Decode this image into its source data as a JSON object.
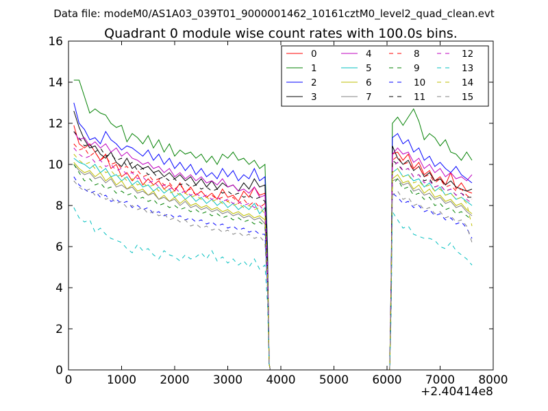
{
  "figure": {
    "supertitle": "Data file: modeM0/AS1A03_039T01_9000001462_10161cztM0_level2_quad_clean.evt"
  },
  "chart_data": {
    "type": "line",
    "title": "Quadrant 0 module wise count rates with 100.0s bins.",
    "xlabel": "",
    "ylabel": "",
    "x_offset_label": "+2.40414e8",
    "xlim": [
      0,
      8000
    ],
    "ylim": [
      0,
      16
    ],
    "xticks": [
      0,
      1000,
      2000,
      3000,
      4000,
      5000,
      6000,
      7000,
      8000
    ],
    "yticks": [
      0,
      2,
      4,
      6,
      8,
      10,
      12,
      14,
      16
    ],
    "grid": false,
    "legend_placement": "top-right",
    "legend_columns": 4,
    "x": [
      100,
      200,
      300,
      400,
      500,
      600,
      700,
      800,
      900,
      1000,
      1100,
      1200,
      1300,
      1400,
      1500,
      1600,
      1700,
      1800,
      1900,
      2000,
      2100,
      2200,
      2300,
      2400,
      2500,
      2600,
      2700,
      2800,
      2900,
      3000,
      3100,
      3200,
      3300,
      3400,
      3500,
      3600,
      3700,
      3750,
      3780,
      3800,
      4000,
      4500,
      5000,
      5500,
      6000,
      6050,
      6080,
      6100,
      6200,
      6300,
      6400,
      6500,
      6600,
      6700,
      6800,
      6900,
      7000,
      7100,
      7200,
      7300,
      7400,
      7500,
      7600
    ],
    "series": [
      {
        "name": "0",
        "color": "#ff0000",
        "style": "solid",
        "values": [
          11.9,
          11.0,
          10.8,
          11.0,
          10.6,
          10.2,
          10.5,
          9.8,
          10.0,
          9.4,
          9.6,
          9.2,
          9.5,
          9.0,
          9.3,
          9.0,
          9.2,
          8.8,
          9.0,
          8.7,
          9.1,
          8.6,
          8.9,
          8.5,
          8.7,
          8.4,
          8.6,
          8.3,
          8.8,
          8.4,
          8.5,
          8.2,
          8.7,
          8.4,
          8.9,
          8.5,
          8.6,
          5.0,
          0.3,
          0.0,
          0.0,
          0.0,
          0.0,
          0.0,
          0.0,
          0.0,
          4.5,
          10.5,
          10.6,
          10.2,
          10.5,
          9.8,
          10.1,
          9.5,
          9.7,
          9.2,
          9.4,
          9.0,
          9.6,
          8.8,
          9.1,
          8.7,
          8.6
        ]
      },
      {
        "name": "1",
        "color": "#008000",
        "style": "solid",
        "values": [
          14.1,
          14.1,
          13.3,
          12.5,
          12.7,
          12.5,
          12.4,
          12.0,
          11.8,
          11.9,
          11.1,
          11.5,
          11.3,
          11.0,
          11.4,
          10.8,
          11.2,
          10.6,
          11.0,
          10.4,
          10.7,
          10.5,
          10.6,
          10.3,
          10.5,
          10.1,
          10.4,
          10.0,
          10.5,
          10.3,
          10.6,
          10.2,
          10.3,
          10.0,
          10.2,
          9.8,
          10.0,
          6.0,
          0.3,
          0.0,
          0.0,
          0.0,
          0.0,
          0.0,
          0.0,
          0.0,
          5.0,
          12.0,
          12.3,
          11.9,
          12.3,
          12.7,
          12.1,
          11.2,
          11.5,
          11.3,
          10.9,
          11.2,
          10.6,
          10.5,
          10.2,
          10.6,
          10.2
        ]
      },
      {
        "name": "2",
        "color": "#0000ff",
        "style": "solid",
        "values": [
          13.0,
          12.0,
          11.7,
          11.2,
          11.3,
          11.0,
          11.6,
          11.2,
          11.0,
          10.7,
          10.9,
          10.8,
          10.6,
          10.4,
          10.7,
          10.2,
          10.5,
          10.0,
          10.3,
          9.8,
          10.1,
          9.7,
          10.0,
          9.5,
          9.8,
          9.4,
          9.6,
          9.3,
          9.8,
          9.4,
          9.7,
          9.2,
          9.5,
          9.3,
          9.8,
          9.2,
          9.4,
          5.5,
          0.3,
          0.0,
          0.0,
          0.0,
          0.0,
          0.0,
          0.0,
          0.0,
          4.8,
          11.3,
          11.5,
          11.0,
          11.2,
          10.6,
          10.8,
          10.2,
          10.4,
          9.9,
          10.1,
          9.8,
          9.6,
          9.9,
          9.5,
          9.3,
          9.1
        ]
      },
      {
        "name": "3",
        "color": "#000000",
        "style": "solid",
        "values": [
          12.6,
          11.8,
          11.2,
          10.8,
          10.9,
          10.5,
          10.3,
          10.6,
          10.1,
          9.9,
          10.3,
          9.8,
          10.0,
          9.8,
          9.9,
          9.6,
          9.7,
          9.4,
          9.6,
          9.3,
          9.5,
          9.2,
          9.4,
          9.0,
          9.3,
          8.9,
          9.2,
          8.8,
          9.1,
          8.9,
          9.0,
          8.7,
          9.1,
          8.8,
          9.3,
          8.9,
          9.0,
          5.3,
          0.3,
          0.0,
          0.0,
          0.0,
          0.0,
          0.0,
          0.0,
          0.0,
          4.6,
          10.9,
          10.3,
          10.0,
          10.2,
          9.7,
          9.9,
          9.4,
          9.6,
          9.2,
          9.3,
          9.0,
          9.2,
          8.9,
          8.8,
          8.7,
          8.8
        ]
      },
      {
        "name": "4",
        "color": "#bf00bf",
        "style": "solid",
        "values": [
          11.6,
          11.2,
          11.3,
          10.9,
          11.1,
          10.8,
          11.0,
          10.6,
          10.8,
          10.4,
          10.6,
          10.3,
          10.2,
          10.0,
          10.1,
          9.8,
          9.9,
          9.6,
          9.8,
          9.4,
          9.6,
          9.3,
          9.5,
          9.2,
          9.4,
          9.1,
          9.2,
          9.0,
          9.3,
          8.9,
          9.0,
          8.7,
          8.8,
          8.6,
          8.9,
          8.4,
          8.5,
          5.0,
          0.3,
          0.0,
          0.0,
          0.0,
          0.0,
          0.0,
          0.0,
          0.0,
          4.6,
          10.5,
          10.8,
          10.5,
          10.6,
          10.1,
          10.3,
          9.8,
          10.0,
          9.6,
          9.8,
          9.4,
          9.6,
          9.3,
          9.4,
          9.2,
          9.5
        ]
      },
      {
        "name": "5",
        "color": "#00bfbf",
        "style": "solid",
        "values": [
          10.3,
          10.1,
          10.0,
          9.8,
          10.0,
          9.6,
          9.8,
          9.4,
          9.5,
          9.2,
          9.4,
          9.0,
          9.2,
          8.9,
          9.0,
          8.7,
          8.9,
          8.6,
          8.8,
          8.4,
          8.6,
          8.3,
          8.5,
          8.2,
          8.4,
          8.1,
          8.3,
          8.0,
          8.2,
          7.9,
          8.1,
          7.8,
          8.0,
          7.8,
          8.1,
          7.6,
          7.9,
          4.7,
          0.3,
          0.0,
          0.0,
          0.0,
          0.0,
          0.0,
          0.0,
          0.0,
          4.3,
          9.6,
          9.8,
          9.4,
          9.5,
          9.2,
          9.3,
          8.9,
          9.1,
          8.7,
          8.9,
          8.5,
          8.6,
          8.3,
          8.4,
          8.2,
          8.0
        ]
      },
      {
        "name": "6",
        "color": "#bfbf00",
        "style": "solid",
        "values": [
          10.1,
          9.8,
          9.6,
          9.7,
          9.4,
          9.6,
          9.2,
          9.4,
          9.0,
          9.2,
          8.8,
          9.0,
          8.7,
          8.8,
          8.5,
          8.7,
          8.3,
          8.5,
          8.2,
          8.4,
          8.1,
          8.3,
          8.0,
          8.1,
          7.9,
          8.0,
          7.8,
          7.9,
          7.7,
          7.8,
          7.6,
          7.7,
          7.5,
          7.6,
          7.4,
          7.5,
          7.3,
          4.4,
          0.3,
          0.0,
          0.0,
          0.0,
          0.0,
          0.0,
          0.0,
          0.0,
          4.1,
          9.3,
          9.5,
          9.1,
          9.2,
          8.8,
          9.0,
          8.6,
          8.8,
          8.4,
          8.5,
          8.2,
          8.3,
          8.0,
          8.1,
          7.8,
          7.6
        ]
      },
      {
        "name": "7",
        "color": "#808080",
        "style": "solid",
        "values": [
          10.0,
          9.7,
          9.5,
          9.6,
          9.3,
          9.4,
          9.1,
          9.3,
          8.9,
          9.0,
          8.8,
          8.9,
          8.6,
          8.7,
          8.5,
          8.6,
          8.3,
          8.4,
          8.2,
          8.3,
          8.0,
          8.2,
          7.9,
          8.0,
          7.8,
          7.9,
          7.7,
          7.8,
          7.6,
          7.7,
          7.5,
          7.6,
          7.4,
          7.5,
          7.3,
          7.4,
          7.1,
          4.3,
          0.3,
          0.0,
          0.0,
          0.0,
          0.0,
          0.0,
          0.0,
          0.0,
          4.0,
          9.2,
          9.3,
          9.0,
          9.1,
          8.7,
          8.8,
          8.5,
          8.6,
          8.3,
          8.4,
          8.1,
          8.2,
          7.9,
          8.0,
          7.7,
          7.5
        ]
      },
      {
        "name": "8",
        "color": "#ff0000",
        "style": "dashed",
        "values": [
          11.0,
          10.7,
          10.8,
          10.4,
          10.6,
          10.2,
          10.4,
          10.0,
          10.1,
          9.8,
          9.9,
          9.6,
          9.7,
          9.4,
          9.5,
          9.2,
          9.3,
          9.0,
          9.1,
          8.8,
          9.0,
          8.7,
          8.8,
          8.5,
          8.7,
          8.4,
          8.5,
          8.3,
          8.4,
          8.2,
          8.4,
          8.1,
          8.3,
          8.0,
          8.2,
          7.9,
          8.1,
          4.8,
          0.3,
          0.0,
          0.0,
          0.0,
          0.0,
          0.0,
          0.0,
          0.0,
          4.4,
          10.2,
          10.4,
          10.0,
          10.1,
          9.7,
          9.9,
          9.4,
          9.5,
          9.1,
          9.3,
          8.9,
          9.0,
          8.7,
          8.8,
          8.5,
          8.3
        ]
      },
      {
        "name": "9",
        "color": "#008000",
        "style": "dashed",
        "values": [
          10.0,
          9.6,
          9.2,
          9.3,
          9.0,
          9.1,
          8.8,
          8.9,
          8.6,
          8.7,
          8.5,
          8.6,
          8.3,
          8.4,
          8.2,
          8.3,
          8.0,
          8.1,
          7.9,
          8.0,
          7.8,
          7.9,
          7.7,
          7.8,
          7.6,
          7.7,
          7.5,
          7.6,
          7.4,
          7.5,
          7.3,
          7.4,
          7.2,
          7.3,
          7.1,
          7.2,
          7.0,
          4.2,
          0.3,
          0.0,
          0.0,
          0.0,
          0.0,
          0.0,
          0.0,
          0.0,
          3.9,
          9.0,
          9.3,
          8.8,
          8.9,
          8.5,
          8.6,
          8.3,
          8.4,
          8.0,
          8.1,
          7.8,
          7.9,
          7.6,
          7.7,
          7.5,
          7.3
        ]
      },
      {
        "name": "10",
        "color": "#0000ff",
        "style": "dashed",
        "values": [
          9.4,
          9.0,
          8.8,
          8.6,
          8.7,
          8.4,
          8.5,
          8.2,
          8.3,
          8.1,
          8.2,
          7.9,
          8.0,
          7.8,
          7.9,
          7.6,
          7.7,
          7.5,
          7.6,
          7.4,
          7.5,
          7.3,
          7.4,
          7.2,
          7.3,
          7.1,
          7.2,
          7.0,
          7.1,
          6.9,
          7.0,
          6.8,
          6.9,
          6.7,
          6.8,
          6.6,
          6.6,
          4.0,
          0.3,
          0.0,
          0.0,
          0.0,
          0.0,
          0.0,
          0.0,
          0.0,
          3.7,
          8.6,
          8.4,
          8.1,
          8.2,
          7.9,
          8.0,
          7.7,
          7.8,
          7.5,
          7.6,
          7.3,
          7.4,
          7.1,
          7.2,
          6.9,
          6.4
        ]
      },
      {
        "name": "11",
        "color": "#000000",
        "style": "dashed",
        "values": [
          11.6,
          11.3,
          10.9,
          11.0,
          10.6,
          10.8,
          10.4,
          10.5,
          10.2,
          10.3,
          9.9,
          10.1,
          9.7,
          9.8,
          9.5,
          9.6,
          9.3,
          9.4,
          9.2,
          9.3,
          9.0,
          9.1,
          8.9,
          9.0,
          8.8,
          8.9,
          8.7,
          8.8,
          8.6,
          8.7,
          8.5,
          8.6,
          8.4,
          8.5,
          8.3,
          8.4,
          8.2,
          4.9,
          0.3,
          0.0,
          0.0,
          0.0,
          0.0,
          0.0,
          0.0,
          0.0,
          4.5,
          10.2,
          10.0,
          9.7,
          9.8,
          9.4,
          9.5,
          9.2,
          9.3,
          8.9,
          9.0,
          8.7,
          8.8,
          8.5,
          8.6,
          8.4,
          8.4
        ]
      },
      {
        "name": "12",
        "color": "#bf00bf",
        "style": "dashed",
        "values": [
          10.8,
          10.5,
          10.3,
          10.4,
          10.1,
          10.2,
          9.9,
          10.0,
          9.7,
          9.8,
          9.5,
          9.6,
          9.3,
          9.4,
          9.1,
          9.2,
          8.9,
          9.0,
          8.8,
          8.9,
          8.6,
          8.7,
          8.5,
          8.6,
          8.4,
          8.5,
          8.3,
          8.4,
          8.2,
          8.3,
          8.1,
          8.2,
          8.0,
          8.1,
          7.9,
          8.0,
          7.7,
          4.6,
          0.3,
          0.0,
          0.0,
          0.0,
          0.0,
          0.0,
          0.0,
          0.0,
          4.3,
          9.9,
          10.1,
          9.7,
          9.8,
          9.4,
          9.5,
          9.1,
          9.2,
          8.9,
          9.0,
          8.7,
          8.8,
          8.5,
          8.6,
          8.3,
          8.1
        ]
      },
      {
        "name": "13",
        "color": "#00bfbf",
        "style": "dashed",
        "values": [
          7.9,
          7.4,
          7.2,
          7.3,
          6.7,
          6.9,
          6.6,
          6.4,
          6.3,
          6.2,
          5.9,
          5.7,
          6.1,
          5.8,
          5.9,
          5.6,
          5.4,
          5.8,
          5.6,
          5.5,
          5.3,
          5.6,
          5.4,
          5.5,
          5.7,
          5.4,
          5.8,
          5.3,
          5.5,
          5.2,
          5.4,
          5.1,
          5.3,
          5.0,
          5.4,
          4.9,
          5.1,
          3.2,
          0.3,
          0.0,
          0.0,
          0.0,
          0.0,
          0.0,
          0.0,
          0.0,
          3.0,
          7.7,
          7.3,
          6.9,
          7.0,
          6.6,
          6.5,
          6.4,
          6.4,
          6.3,
          6.0,
          5.9,
          6.2,
          5.8,
          5.6,
          5.4,
          5.1
        ]
      },
      {
        "name": "14",
        "color": "#bfbf00",
        "style": "dashed",
        "values": [
          10.5,
          10.2,
          10.0,
          10.1,
          9.8,
          9.9,
          9.6,
          9.7,
          9.4,
          9.5,
          9.2,
          9.3,
          9.0,
          9.1,
          8.9,
          9.0,
          8.7,
          8.8,
          8.6,
          8.7,
          8.5,
          8.6,
          8.4,
          8.5,
          8.3,
          8.4,
          8.2,
          8.3,
          8.1,
          8.2,
          8.0,
          8.1,
          7.9,
          8.0,
          7.8,
          7.9,
          7.6,
          4.5,
          0.3,
          0.0,
          0.0,
          0.0,
          0.0,
          0.0,
          0.0,
          0.0,
          4.2,
          9.6,
          9.8,
          9.4,
          9.5,
          9.1,
          9.2,
          8.9,
          9.0,
          8.7,
          8.8,
          8.5,
          8.6,
          8.3,
          8.4,
          8.1,
          7.0
        ]
      },
      {
        "name": "15",
        "color": "#808080",
        "style": "dashed",
        "values": [
          9.2,
          8.9,
          8.7,
          8.8,
          8.5,
          8.6,
          8.3,
          8.4,
          8.1,
          8.2,
          7.9,
          8.0,
          7.8,
          7.9,
          7.6,
          7.7,
          7.5,
          7.6,
          7.3,
          7.4,
          7.2,
          7.3,
          7.0,
          7.1,
          6.9,
          7.0,
          6.8,
          6.9,
          6.7,
          6.8,
          6.6,
          6.7,
          6.5,
          6.6,
          6.4,
          6.5,
          6.2,
          3.8,
          0.3,
          0.0,
          0.0,
          0.0,
          0.0,
          0.0,
          0.0,
          0.0,
          3.6,
          8.5,
          8.7,
          8.3,
          8.4,
          8.0,
          8.1,
          7.8,
          7.9,
          7.6,
          7.7,
          7.4,
          7.5,
          7.2,
          7.3,
          7.0,
          6.2
        ]
      }
    ]
  }
}
